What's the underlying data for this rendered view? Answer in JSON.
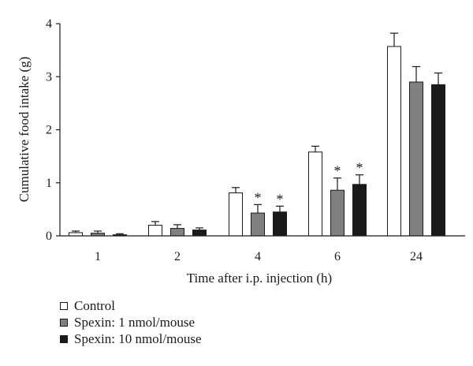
{
  "chart_data": {
    "type": "bar",
    "xlabel": "Time after i.p. injection (h)",
    "ylabel": "Cumulative food intake (g)",
    "categories": [
      "1",
      "2",
      "4",
      "6",
      "24"
    ],
    "ylim": [
      0,
      4
    ],
    "yticks": [
      "0",
      "1",
      "2",
      "3",
      "4"
    ],
    "series": [
      {
        "name": "Control",
        "color": "#ffffff",
        "values": [
          0.06,
          0.2,
          0.81,
          1.58,
          3.57
        ],
        "errors": [
          0.03,
          0.07,
          0.1,
          0.11,
          0.25
        ],
        "significance": [
          "",
          "",
          "",
          "",
          ""
        ]
      },
      {
        "name": "Spexin: 1 nmol/mouse",
        "color": "#808080",
        "values": [
          0.05,
          0.14,
          0.43,
          0.86,
          2.9
        ],
        "errors": [
          0.04,
          0.07,
          0.16,
          0.23,
          0.29
        ],
        "significance": [
          "",
          "",
          "*",
          "*",
          ""
        ]
      },
      {
        "name": "Spexin: 10 nmol/mouse",
        "color": "#1a1a1a",
        "values": [
          0.02,
          0.11,
          0.45,
          0.97,
          2.85
        ],
        "errors": [
          0.02,
          0.04,
          0.11,
          0.18,
          0.22
        ],
        "significance": [
          "",
          "",
          "*",
          "*",
          ""
        ]
      }
    ],
    "grid": false,
    "legend_position": "bottom-left"
  }
}
